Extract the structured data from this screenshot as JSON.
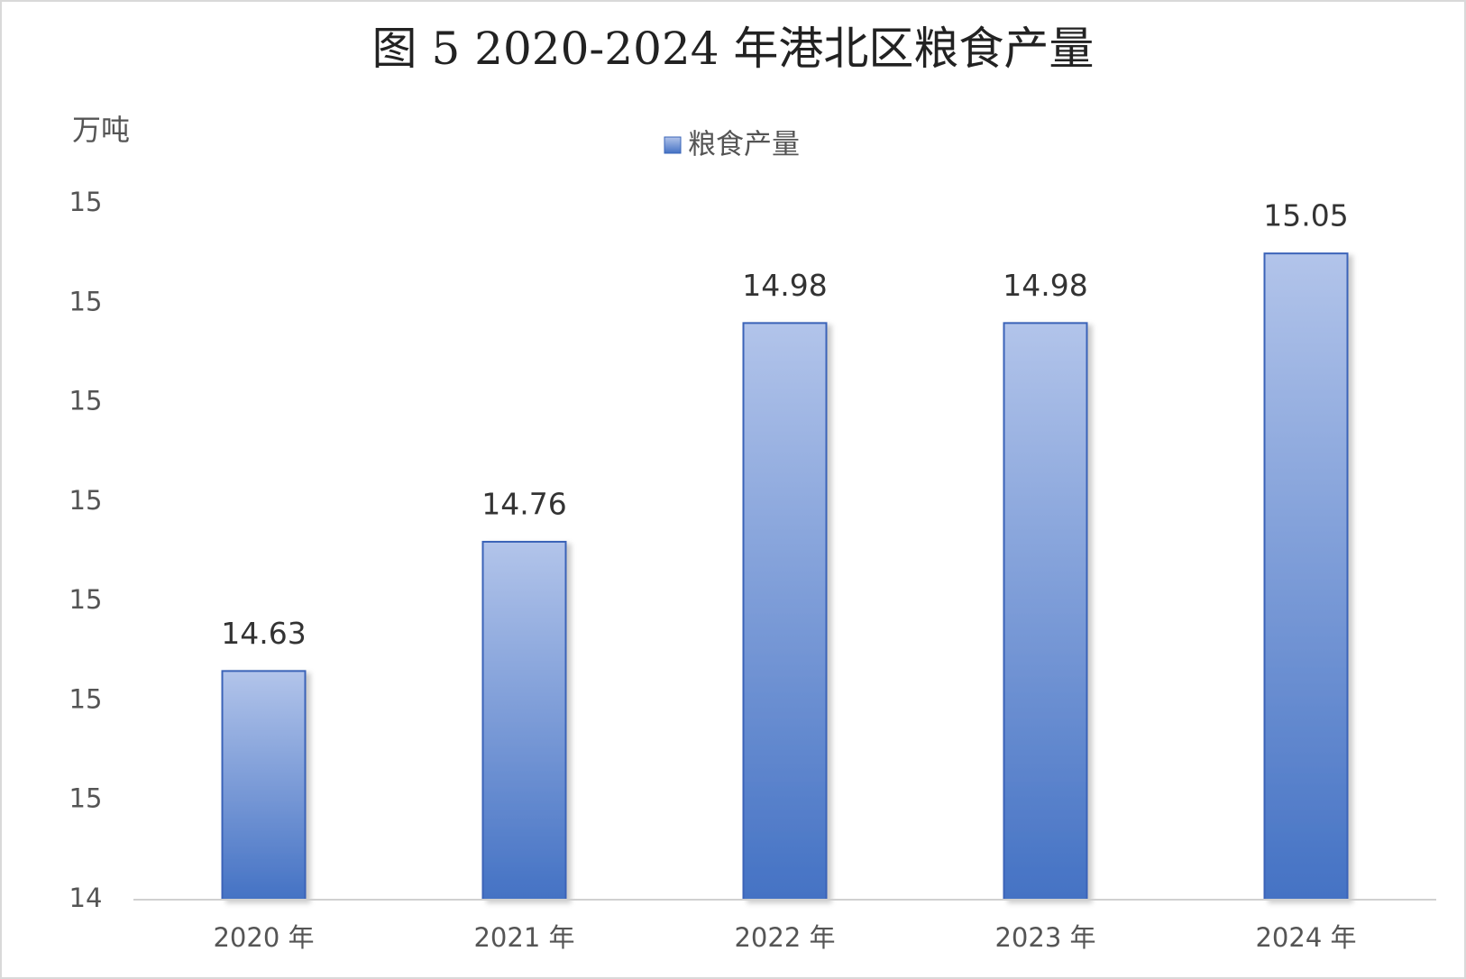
{
  "chart_data": {
    "type": "bar",
    "title": "图 5 2020-2024 年港北区粮食产量",
    "y_label": "万吨",
    "categories": [
      "2020 年",
      "2021 年",
      "2022 年",
      "2023 年",
      "2024 年"
    ],
    "series": [
      {
        "name": "粮食产量",
        "color": "#4472c4",
        "values": [
          14.63,
          14.76,
          14.98,
          14.98,
          15.05
        ]
      }
    ],
    "ylim": [
      14.4,
      15.1
    ],
    "yticks": [
      {
        "value": 14.4,
        "label": "14"
      },
      {
        "value": 14.5,
        "label": "15"
      },
      {
        "value": 14.6,
        "label": "15"
      },
      {
        "value": 14.7,
        "label": "15"
      },
      {
        "value": 14.8,
        "label": "15"
      },
      {
        "value": 14.9,
        "label": "15"
      },
      {
        "value": 15.0,
        "label": "15"
      },
      {
        "value": 15.1,
        "label": "15"
      }
    ],
    "legend": "top"
  }
}
